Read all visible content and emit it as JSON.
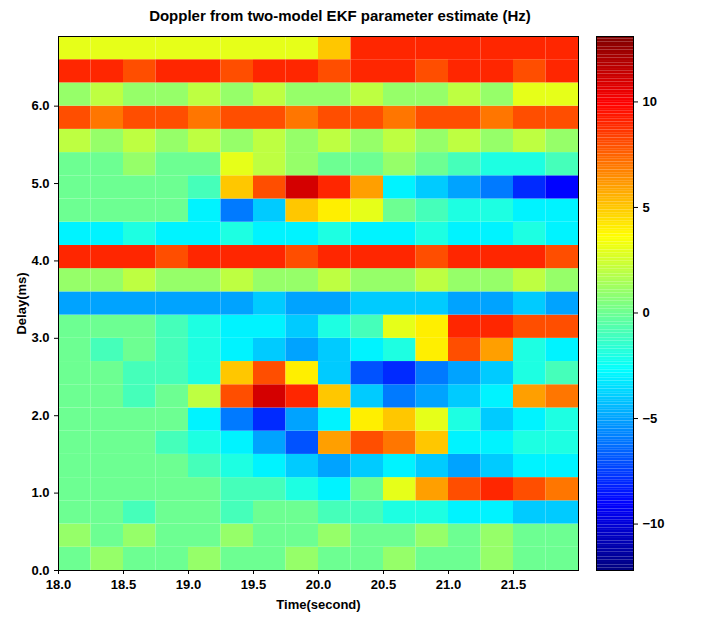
{
  "chart_data": {
    "type": "heatmap",
    "title": "Doppler from two-model EKF parameter estimate (Hz)",
    "x_label": "Time(second)",
    "y_label": "Delay(ms)",
    "xlim": [
      18,
      22
    ],
    "xticks": [
      18,
      18.5,
      19,
      19.5,
      20,
      20.5,
      21,
      21.5
    ],
    "ylim": [
      0,
      6.9
    ],
    "yticks": [
      0,
      1,
      2,
      3,
      4,
      5,
      6
    ],
    "x_bins": [
      18,
      18.25,
      18.5,
      18.75,
      19,
      19.25,
      19.5,
      19.75,
      20,
      20.25,
      20.5,
      20.75,
      21,
      21.25,
      21.5,
      21.75,
      22
    ],
    "y_bins": [
      0,
      0.3,
      0.6,
      0.9,
      1.2,
      1.5,
      1.8,
      2.1,
      2.4,
      2.7,
      3,
      3.3,
      3.6,
      3.9,
      4.2,
      4.5,
      4.8,
      5.1,
      5.4,
      5.7,
      6,
      6.3,
      6.6,
      6.9
    ],
    "values": [
      [
        0,
        1,
        0,
        0,
        1,
        0,
        0,
        1,
        0,
        0,
        1,
        0,
        0,
        1,
        0,
        0
      ],
      [
        1,
        0,
        1,
        0,
        0,
        1,
        0,
        0,
        1,
        0,
        0,
        1,
        0,
        1,
        0,
        0
      ],
      [
        0,
        0,
        -1,
        0,
        0,
        -1,
        0,
        0,
        -1,
        -1,
        -2,
        -2,
        -3,
        -3,
        -4,
        -4
      ],
      [
        0,
        0,
        0,
        0,
        0,
        -1,
        -1,
        -2,
        -3,
        0,
        3,
        6,
        8,
        9,
        8,
        7
      ],
      [
        0,
        0,
        0,
        0,
        -1,
        -2,
        -3,
        -4,
        -5,
        -4,
        -3,
        -4,
        -5,
        -4,
        -3,
        -3
      ],
      [
        0,
        0,
        0,
        -1,
        -2,
        -3,
        -5,
        -7,
        6,
        8,
        7,
        5,
        -3,
        -3,
        -2,
        -2
      ],
      [
        0,
        0,
        0,
        0,
        -3,
        -6,
        -8,
        -5,
        -3,
        4,
        5,
        3,
        -2,
        -4,
        -3,
        -2
      ],
      [
        0,
        0,
        -1,
        0,
        2,
        8,
        11,
        9,
        5,
        -4,
        -6,
        -5,
        -4,
        -3,
        6,
        7
      ],
      [
        0,
        0,
        -1,
        -1,
        -2,
        5,
        8,
        4,
        -4,
        -7,
        -8,
        -6,
        -5,
        -4,
        -2,
        -1
      ],
      [
        0,
        -1,
        0,
        -1,
        -2,
        -3,
        -4,
        -5,
        -4,
        -3,
        -2,
        4,
        8,
        6,
        -2,
        -3
      ],
      [
        0,
        0,
        0,
        -1,
        -2,
        -3,
        -3,
        -4,
        -2,
        -1,
        3,
        4,
        9,
        9,
        8,
        8
      ],
      [
        -5,
        -5,
        -5,
        -5,
        -5,
        -5,
        -4,
        -5,
        -5,
        -4,
        -4,
        -4,
        -5,
        -5,
        -4,
        -5
      ],
      [
        1,
        1,
        2,
        1,
        1,
        2,
        1,
        1,
        2,
        1,
        1,
        2,
        1,
        1,
        2,
        1
      ],
      [
        9,
        9,
        9,
        8,
        9,
        9,
        9,
        8,
        9,
        9,
        9,
        8,
        9,
        9,
        9,
        8
      ],
      [
        -3,
        -3,
        -2,
        -3,
        -3,
        -2,
        -3,
        -3,
        -2,
        -3,
        -3,
        -2,
        -3,
        -3,
        -2,
        -3
      ],
      [
        0,
        0,
        0,
        0,
        -3,
        -6,
        -4,
        5,
        4,
        3,
        0,
        -1,
        -2,
        -2,
        -3,
        -3
      ],
      [
        0,
        0,
        0,
        0,
        -1,
        5,
        8,
        11,
        9,
        6,
        -3,
        -4,
        -5,
        -6,
        -8,
        -9
      ],
      [
        0,
        0,
        1,
        0,
        0,
        3,
        2,
        1,
        0,
        0,
        1,
        0,
        -1,
        -2,
        -2,
        -1
      ],
      [
        2,
        1,
        2,
        1,
        2,
        1,
        2,
        1,
        2,
        1,
        2,
        1,
        2,
        1,
        2,
        1
      ],
      [
        8,
        7,
        8,
        8,
        7,
        8,
        8,
        7,
        8,
        8,
        7,
        8,
        8,
        7,
        8,
        8
      ],
      [
        1,
        2,
        1,
        1,
        2,
        1,
        2,
        1,
        1,
        2,
        1,
        1,
        2,
        1,
        3,
        3
      ],
      [
        9,
        9,
        8,
        9,
        9,
        8,
        9,
        9,
        8,
        9,
        9,
        8,
        9,
        9,
        8,
        9
      ],
      [
        3,
        3,
        3,
        3,
        3,
        3,
        3,
        3,
        5,
        9,
        9,
        9,
        9,
        9,
        9,
        9
      ]
    ],
    "colorbar": {
      "range": [
        -12.2,
        13.1
      ],
      "ticks": [
        -10,
        -5,
        0,
        5,
        10
      ]
    }
  }
}
